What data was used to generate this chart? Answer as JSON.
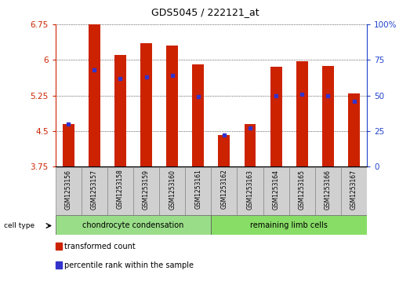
{
  "title": "GDS5045 / 222121_at",
  "samples": [
    "GSM1253156",
    "GSM1253157",
    "GSM1253158",
    "GSM1253159",
    "GSM1253160",
    "GSM1253161",
    "GSM1253162",
    "GSM1253163",
    "GSM1253164",
    "GSM1253165",
    "GSM1253166",
    "GSM1253167"
  ],
  "transformed_counts": [
    4.65,
    6.75,
    6.1,
    6.35,
    6.3,
    5.9,
    4.42,
    4.65,
    5.85,
    5.97,
    5.87,
    5.3
  ],
  "percentile_ranks": [
    30,
    68,
    62,
    63,
    64,
    49,
    22,
    27,
    50,
    51,
    50,
    46
  ],
  "cell_type_groups": [
    {
      "label": "chondrocyte condensation",
      "start": 0,
      "end": 6,
      "color": "#99dd88"
    },
    {
      "label": "remaining limb cells",
      "start": 6,
      "end": 12,
      "color": "#88dd66"
    }
  ],
  "ylim_left": [
    3.75,
    6.75
  ],
  "ylim_right": [
    0,
    100
  ],
  "yticks_left": [
    3.75,
    4.5,
    5.25,
    6.0,
    6.75
  ],
  "yticks_right": [
    0,
    25,
    50,
    75,
    100
  ],
  "ytick_labels_left": [
    "3.75",
    "4.5",
    "5.25",
    "6",
    "6.75"
  ],
  "ytick_labels_right": [
    "0",
    "25",
    "50",
    "75",
    "100%"
  ],
  "bar_color": "#cc2200",
  "dot_color": "#3333cc",
  "bar_width": 0.45,
  "legend_items": [
    {
      "label": "transformed count",
      "color": "#cc2200"
    },
    {
      "label": "percentile rank within the sample",
      "color": "#3333cc"
    }
  ],
  "cell_type_label": "cell type",
  "left_axis_color": "#cc2200",
  "right_axis_color": "#2244cc"
}
